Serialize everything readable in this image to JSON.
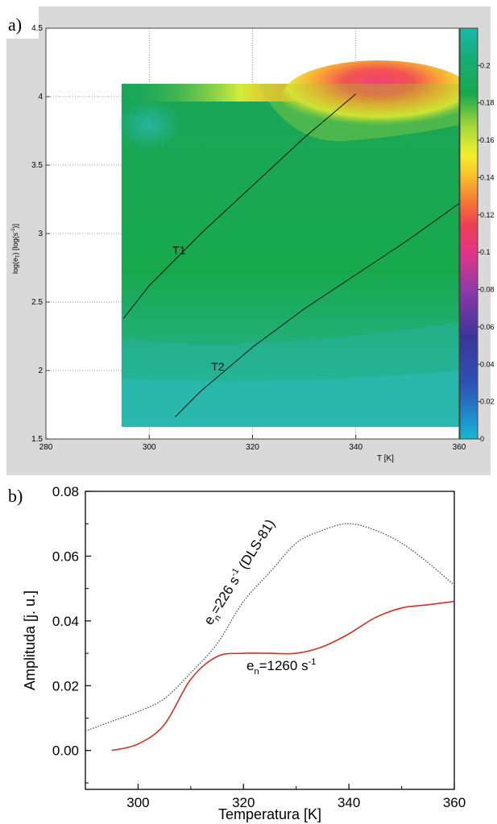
{
  "panel_labels": {
    "a": "a)",
    "b": "b)"
  },
  "chart_data": [
    {
      "type": "heatmap",
      "xlabel": "T [K]",
      "ylabel": "log(e",
      "ylabel_sub": "T",
      "ylabel_tail": ") [log(s",
      "ylabel_sup": "-1",
      "ylabel_end": ")]",
      "xlim": [
        280,
        360
      ],
      "ylim": [
        1.5,
        4.5
      ],
      "x_ticks": [
        280,
        300,
        320,
        340,
        360
      ],
      "y_ticks": [
        1.5,
        2,
        2.5,
        3,
        3.5,
        4,
        4.5
      ],
      "y_tick_labels": [
        "1.5",
        "2",
        "2.5",
        "3",
        "3.5",
        "4",
        "4.5"
      ],
      "data_extent": {
        "x": [
          295,
          360
        ],
        "y": [
          1.6,
          4.1
        ]
      },
      "colorbar": {
        "range": [
          0,
          0.22
        ],
        "ticks": [
          0,
          0.02,
          0.04,
          0.06,
          0.08,
          0.1,
          0.12,
          0.14,
          0.16,
          0.18,
          0.2
        ],
        "tick_labels": [
          "0",
          "0.02",
          "0.04",
          "0.06",
          "0.08",
          "0.1",
          "0.12",
          "0.14",
          "0.16",
          "0.18",
          "0.2"
        ],
        "colors": [
          "#12b8d4",
          "#2a5dc0",
          "#3a2f9a",
          "#5b3aa0",
          "#b03aa8",
          "#e8357e",
          "#f05a35",
          "#f7a62a",
          "#f6ef2a",
          "#8ed03a",
          "#12a84a",
          "#14b4a8"
        ]
      },
      "annotations": [
        {
          "label": "T1",
          "x": 304.5,
          "y": 2.85
        },
        {
          "label": "T2",
          "x": 312,
          "y": 2.0
        }
      ],
      "lines": [
        {
          "name": "T1",
          "x": [
            295,
            300,
            310,
            320,
            330,
            340
          ],
          "y": [
            2.38,
            2.62,
            3.0,
            3.35,
            3.7,
            4.02
          ]
        },
        {
          "name": "T2",
          "x": [
            305,
            310,
            320,
            330,
            340,
            350,
            360
          ],
          "y": [
            1.66,
            1.85,
            2.17,
            2.45,
            2.7,
            2.95,
            3.22
          ]
        }
      ],
      "colors": {
        "background": "#ffffff",
        "frame_outer": "#d9d9d9",
        "field": "#18a84c",
        "field_low": "#2ab6b4"
      },
      "grid": "dotted"
    },
    {
      "type": "line",
      "xlabel": "Temperatura [K]",
      "ylabel": "Amplituda [j. u.]",
      "xlim": [
        290,
        360
      ],
      "ylim": [
        -0.012,
        0.08
      ],
      "x_ticks": [
        300,
        320,
        340,
        360
      ],
      "x_tick_labels": [
        "300",
        "320",
        "340",
        "360"
      ],
      "y_ticks": [
        0.0,
        0.02,
        0.04,
        0.06,
        0.08
      ],
      "y_tick_labels": [
        "0.00",
        "0.02",
        "0.04",
        "0.06",
        "0.08"
      ],
      "series": [
        {
          "style": "dotted",
          "color": "#555555",
          "x": [
            290,
            295,
            300,
            305,
            310,
            315,
            320,
            325,
            330,
            335,
            340,
            345,
            350,
            355,
            360
          ],
          "y": [
            0.006,
            0.009,
            0.012,
            0.016,
            0.024,
            0.033,
            0.046,
            0.055,
            0.064,
            0.068,
            0.07,
            0.068,
            0.064,
            0.058,
            0.051
          ]
        },
        {
          "style": "solid",
          "color": "#cc3322",
          "x": [
            295,
            300,
            305,
            310,
            315,
            320,
            325,
            330,
            335,
            340,
            345,
            350,
            355,
            360
          ],
          "y": [
            0.0,
            0.002,
            0.008,
            0.022,
            0.029,
            0.03,
            0.03,
            0.03,
            0.032,
            0.036,
            0.041,
            0.044,
            0.045,
            0.046
          ]
        }
      ],
      "annotations": [
        {
          "main": "e",
          "sub": "n",
          "tail": "=226 s",
          "sup": "-1",
          "end": " (DLS-81)",
          "color": "#808080"
        },
        {
          "main": "e",
          "sub": "n",
          "tail": "=1260 s",
          "sup": "-1",
          "end": "",
          "color": "#000000"
        }
      ]
    }
  ]
}
